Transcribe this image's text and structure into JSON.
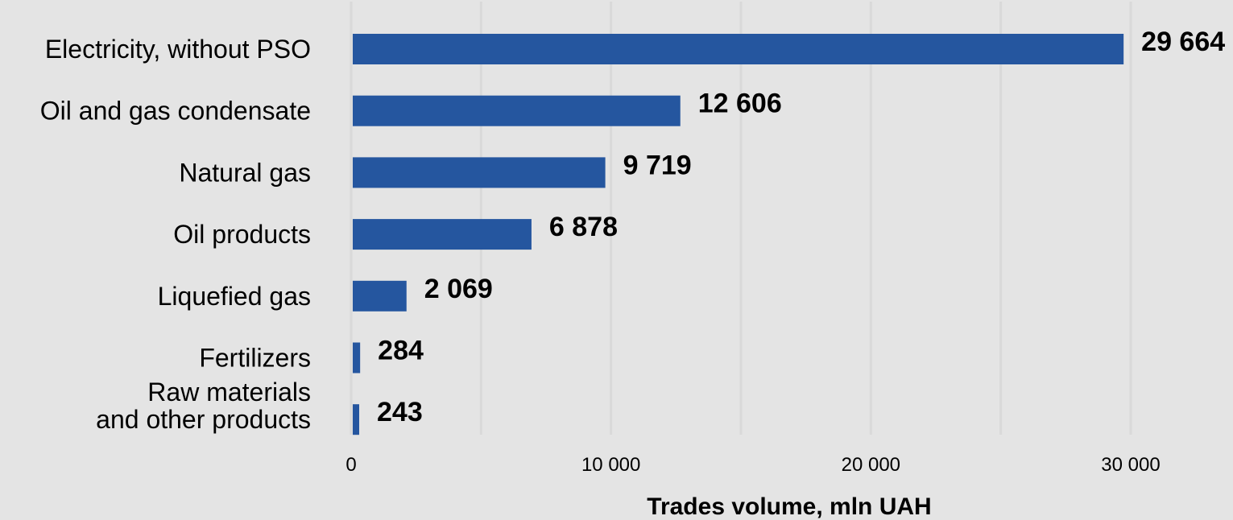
{
  "chart_data": {
    "type": "bar",
    "orientation": "horizontal",
    "categories": [
      [
        "Electricity, without PSO"
      ],
      [
        "Oil and gas condensate"
      ],
      [
        "Natural gas"
      ],
      [
        "Oil products"
      ],
      [
        "Liquefied gas"
      ],
      [
        "Fertilizers"
      ],
      [
        "Raw materials",
        "and other products"
      ]
    ],
    "values": [
      29664,
      12606,
      9719,
      6878,
      2069,
      284,
      243
    ],
    "value_labels": [
      "29 664",
      "12 606",
      "9 719",
      "6 878",
      "2 069",
      "284",
      "243"
    ],
    "xlabel": "Trades volume, mln UAH",
    "xlim": [
      0,
      30000
    ],
    "x_ticks": [
      0,
      10000,
      20000,
      30000
    ],
    "x_tick_labels": [
      "0",
      "10 000",
      "20 000",
      "30 000"
    ],
    "grid": true,
    "colors": {
      "bar": "#25569f",
      "background": "#e4e4e4",
      "grid": "#d9d9d9"
    }
  }
}
